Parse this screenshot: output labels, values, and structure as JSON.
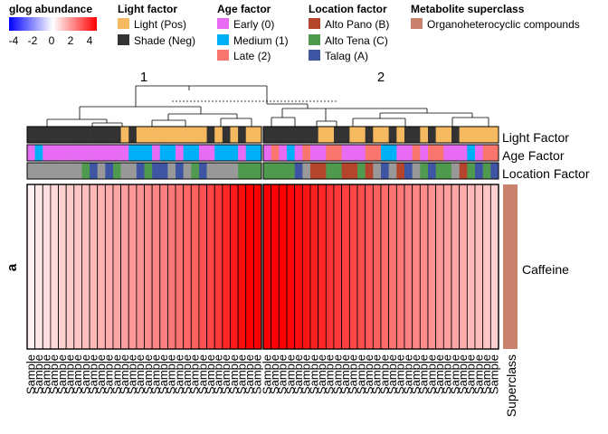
{
  "chart_data": {
    "type": "heatmap",
    "legends": {
      "abundance": {
        "title": "glog abundance",
        "ticks": [
          "-4",
          "-2",
          "0",
          "2",
          "4"
        ],
        "colors": [
          "#0000ff",
          "#ffffff",
          "#ff0000"
        ]
      },
      "light": {
        "title": "Light factor",
        "entries": [
          {
            "label": "Light (Pos)",
            "color": "#f5b95f"
          },
          {
            "label": "Shade (Neg)",
            "color": "#333333"
          }
        ]
      },
      "age": {
        "title": "Age factor",
        "entries": [
          {
            "label": "Early (0)",
            "color": "#e76bf3"
          },
          {
            "label": "Medium (1)",
            "color": "#00b0f6"
          },
          {
            "label": "Late (2)",
            "color": "#f8766d"
          }
        ]
      },
      "location": {
        "title": "Location factor",
        "entries": [
          {
            "label": "Alto Pano (B)",
            "color": "#b5442d"
          },
          {
            "label": "Alto Tena (C)",
            "color": "#4f9a4f"
          },
          {
            "label": "Talag (A)",
            "color": "#3e55a3"
          }
        ]
      },
      "superclass": {
        "title": "Metabolite superclass",
        "entries": [
          {
            "label": "Organoheterocyclic compounds",
            "color": "#c8826e"
          }
        ]
      }
    },
    "cluster_labels": [
      "1",
      "2"
    ],
    "annotation_rows": [
      "Light Factor",
      "Age Factor",
      "Location Factor"
    ],
    "row_split_label": "a",
    "row_label": "Caffeine",
    "superclass_label": "Superclass",
    "column_label": "Sample",
    "clusters": [
      {
        "label": "1",
        "values": [
          0.2,
          0.4,
          0.5,
          0.6,
          0.7,
          0.8,
          0.9,
          1.0,
          1.1,
          1.2,
          1.3,
          1.4,
          1.5,
          1.6,
          1.7,
          1.8,
          1.9,
          2.0,
          2.1,
          2.2,
          2.4,
          2.5,
          2.7,
          2.9,
          3.1,
          3.4,
          3.6,
          3.8,
          4.0,
          4.2
        ],
        "light": [
          "S",
          "S",
          "S",
          "S",
          "S",
          "S",
          "S",
          "S",
          "S",
          "S",
          "S",
          "S",
          "L",
          "S",
          "L",
          "L",
          "L",
          "L",
          "L",
          "L",
          "L",
          "L",
          "L",
          "S",
          "L",
          "S",
          "L",
          "S",
          "L",
          "L"
        ],
        "age": [
          "E",
          "M",
          "E",
          "E",
          "E",
          "E",
          "E",
          "E",
          "E",
          "E",
          "E",
          "E",
          "E",
          "M",
          "M",
          "M",
          "E",
          "M",
          "M",
          "E",
          "M",
          "M",
          "E",
          "E",
          "M",
          "M",
          "M",
          "E",
          "M",
          "M"
        ],
        "location": [
          "T",
          "T",
          "T",
          "T",
          "T",
          "T",
          "T",
          "C",
          "A",
          "T",
          "A",
          "C",
          "T",
          "T",
          "A",
          "C",
          "A",
          "A",
          "T",
          "A",
          "T",
          "C",
          "A",
          "T",
          "T",
          "T",
          "T",
          "C",
          "C",
          "C"
        ]
      },
      {
        "label": "2",
        "values": [
          4.2,
          4.1,
          4.0,
          3.9,
          3.8,
          3.7,
          3.5,
          3.4,
          3.2,
          3.1,
          3.0,
          2.9,
          2.8,
          2.6,
          2.5,
          2.3,
          2.2,
          2.1,
          2.0,
          1.9,
          1.8,
          1.7,
          1.6,
          1.5,
          1.4,
          1.3,
          1.1,
          1.0,
          0.9,
          0.7
        ],
        "light": [
          "S",
          "S",
          "S",
          "S",
          "S",
          "S",
          "S",
          "L",
          "L",
          "S",
          "S",
          "L",
          "L",
          "S",
          "L",
          "L",
          "S",
          "L",
          "S",
          "S",
          "L",
          "S",
          "L",
          "L",
          "S",
          "L",
          "L",
          "L",
          "L",
          "L"
        ],
        "age": [
          "E",
          "L",
          "E",
          "M",
          "E",
          "L",
          "E",
          "E",
          "L",
          "L",
          "E",
          "E",
          "E",
          "L",
          "L",
          "M",
          "M",
          "E",
          "E",
          "L",
          "E",
          "L",
          "L",
          "E",
          "E",
          "E",
          "M",
          "E",
          "L",
          "L"
        ],
        "location": [
          "C",
          "C",
          "C",
          "C",
          "A",
          "T",
          "B",
          "B",
          "C",
          "C",
          "B",
          "B",
          "C",
          "B",
          "T",
          "A",
          "T",
          "B",
          "A",
          "T",
          "C",
          "A",
          "C",
          "C",
          "T",
          "B",
          "C",
          "A",
          "C",
          "A"
        ]
      }
    ],
    "code_keys": {
      "light": {
        "L": "Light (Pos)",
        "S": "Shade (Neg)"
      },
      "age": {
        "E": "Early (0)",
        "M": "Medium (1)",
        "L": "Late (2)"
      },
      "location": {
        "B": "Alto Pano (B)",
        "C": "Alto Tena (C)",
        "A": "Talag (A)"
      }
    },
    "color_range": [
      -4,
      4
    ]
  }
}
